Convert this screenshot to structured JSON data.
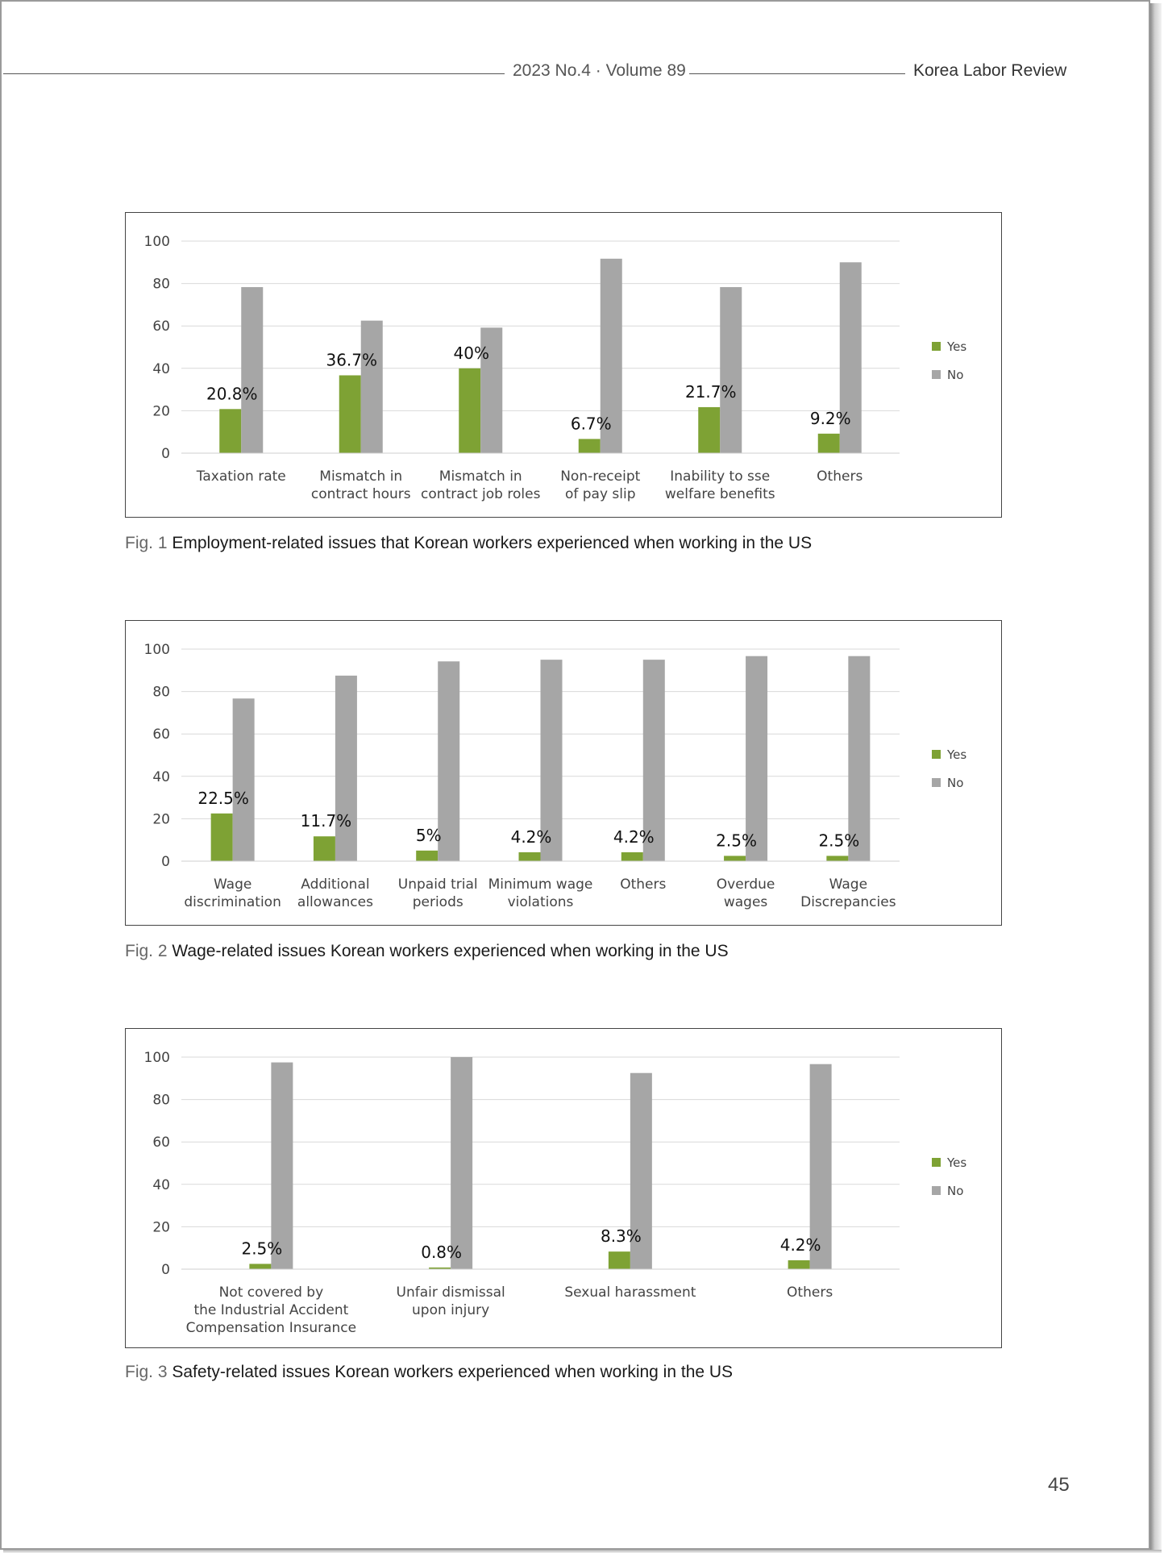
{
  "header": {
    "issue": "2023 No.4 · Volume 89",
    "journal": "Korea Labor Review"
  },
  "page_number": "45",
  "figures": [
    {
      "number": "Fig. 1",
      "caption": "Employment-related issues that Korean workers experienced when working in the US"
    },
    {
      "number": "Fig. 2",
      "caption": "Wage-related issues Korean workers experienced when working in the US"
    },
    {
      "number": "Fig. 3",
      "caption": "Safety-related issues Korean workers experienced when working in the US"
    }
  ],
  "colors": {
    "yes": "#7ea234",
    "no": "#a6a6a6",
    "grid": "#d9d9d9"
  },
  "chart_data": [
    {
      "type": "bar",
      "title": "",
      "xlabel": "",
      "ylabel": "",
      "ylim": [
        0,
        100
      ],
      "yticks": [
        0,
        20,
        40,
        60,
        80,
        100
      ],
      "grid": true,
      "legend": "right",
      "categories": [
        [
          "Taxation rate"
        ],
        [
          "Mismatch in",
          "contract hours"
        ],
        [
          "Mismatch in",
          "contract job roles"
        ],
        [
          "Non-receipt",
          "of pay slip"
        ],
        [
          "Inability to sse",
          "welfare benefits"
        ],
        [
          "Others"
        ]
      ],
      "series": [
        {
          "name": "Yes",
          "values": [
            20.8,
            36.7,
            40,
            6.7,
            21.7,
            9.2
          ],
          "labels": [
            "20.8%",
            "36.7%",
            "40%",
            "6.7%",
            "21.7%",
            "9.2%"
          ]
        },
        {
          "name": "No",
          "values": [
            78.3,
            62.5,
            59.2,
            91.7,
            78.3,
            90
          ]
        }
      ]
    },
    {
      "type": "bar",
      "title": "",
      "xlabel": "",
      "ylabel": "",
      "ylim": [
        0,
        100
      ],
      "yticks": [
        0,
        20,
        40,
        60,
        80,
        100
      ],
      "grid": true,
      "legend": "right",
      "categories": [
        [
          "Wage",
          "discrimination"
        ],
        [
          "Additional",
          "allowances"
        ],
        [
          "Unpaid trial",
          "periods"
        ],
        [
          "Minimum wage",
          "violations"
        ],
        [
          "Others"
        ],
        [
          "Overdue",
          "wages"
        ],
        [
          "Wage",
          "Discrepancies"
        ]
      ],
      "series": [
        {
          "name": "Yes",
          "values": [
            22.5,
            11.7,
            5,
            4.2,
            4.2,
            2.5,
            2.5
          ],
          "labels": [
            "22.5%",
            "11.7%",
            "5%",
            "4.2%",
            "4.2%",
            "2.5%",
            "2.5%"
          ]
        },
        {
          "name": "No",
          "values": [
            76.7,
            87.5,
            94.2,
            95,
            95,
            96.7,
            96.7
          ]
        }
      ]
    },
    {
      "type": "bar",
      "title": "",
      "xlabel": "",
      "ylabel": "",
      "ylim": [
        0,
        100
      ],
      "yticks": [
        0,
        20,
        40,
        60,
        80,
        100
      ],
      "grid": true,
      "legend": "right",
      "categories": [
        [
          "Not covered by",
          "the Industrial Accident",
          "Compensation Insurance"
        ],
        [
          "Unfair dismissal",
          "upon injury"
        ],
        [
          "Sexual harassment"
        ],
        [
          "Others"
        ]
      ],
      "series": [
        {
          "name": "Yes",
          "values": [
            2.5,
            0.8,
            8.3,
            4.2
          ],
          "labels": [
            "2.5%",
            "0.8%",
            "8.3%",
            "4.2%"
          ]
        },
        {
          "name": "No",
          "values": [
            97.5,
            100,
            92.5,
            96.7
          ]
        }
      ]
    }
  ]
}
